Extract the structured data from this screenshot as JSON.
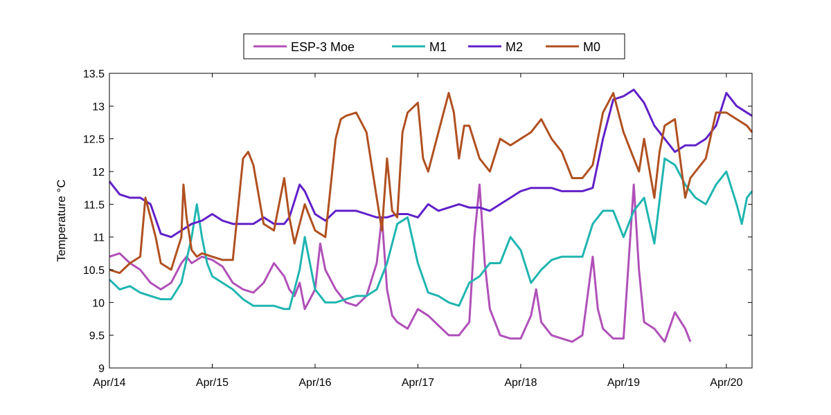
{
  "chart_data": {
    "type": "line",
    "ylabel": "Temperature °C",
    "xlabel": "",
    "title": "",
    "ylim": [
      9,
      13.5
    ],
    "xlim": [
      0,
      6.25
    ],
    "yticks": [
      9,
      9.5,
      10,
      10.5,
      11,
      11.5,
      12,
      12.5,
      13,
      13.5
    ],
    "ytick_labels": [
      "9",
      "9.5",
      "10",
      "10.5",
      "11",
      "11.5",
      "12",
      "12.5",
      "13",
      "13.5"
    ],
    "xticks": [
      0,
      1,
      2,
      3,
      4,
      5,
      6
    ],
    "xtick_labels": [
      "Apr/14",
      "Apr/15",
      "Apr/16",
      "Apr/17",
      "Apr/18",
      "Apr/19",
      "Apr/20"
    ],
    "grid": false,
    "legend_position": "top-center",
    "series": [
      {
        "name": "ESP-3 Moe",
        "color": "#b050b8",
        "x": [
          0,
          0.1,
          0.2,
          0.3,
          0.4,
          0.5,
          0.6,
          0.7,
          0.75,
          0.8,
          0.9,
          1.0,
          1.1,
          1.2,
          1.3,
          1.4,
          1.5,
          1.6,
          1.7,
          1.75,
          1.8,
          1.85,
          1.9,
          2.0,
          2.05,
          2.1,
          2.2,
          2.3,
          2.4,
          2.5,
          2.6,
          2.65,
          2.7,
          2.75,
          2.8,
          2.9,
          3.0,
          3.1,
          3.2,
          3.3,
          3.4,
          3.5,
          3.55,
          3.6,
          3.65,
          3.7,
          3.75,
          3.8,
          3.9,
          4.0,
          4.1,
          4.15,
          4.2,
          4.3,
          4.4,
          4.5,
          4.6,
          4.7,
          4.75,
          4.8,
          4.9,
          5.0,
          5.1,
          5.15,
          5.2,
          5.3,
          5.4,
          5.5,
          5.6,
          5.65
        ],
        "y": [
          10.7,
          10.75,
          10.6,
          10.5,
          10.3,
          10.2,
          10.3,
          10.6,
          10.7,
          10.6,
          10.7,
          10.65,
          10.55,
          10.3,
          10.2,
          10.15,
          10.3,
          10.6,
          10.4,
          10.2,
          10.1,
          10.3,
          9.9,
          10.2,
          10.9,
          10.5,
          10.2,
          10.0,
          9.95,
          10.1,
          10.6,
          11.3,
          10.2,
          9.8,
          9.7,
          9.6,
          9.9,
          9.8,
          9.65,
          9.5,
          9.5,
          9.7,
          11.0,
          11.8,
          10.6,
          9.9,
          9.7,
          9.5,
          9.45,
          9.45,
          9.8,
          10.2,
          9.7,
          9.5,
          9.45,
          9.4,
          9.5,
          10.7,
          9.9,
          9.6,
          9.45,
          9.45,
          11.8,
          10.5,
          9.7,
          9.6,
          9.4,
          9.85,
          9.6,
          9.4
        ]
      },
      {
        "name": "M1",
        "color": "#1fb5b0",
        "x": [
          0,
          0.1,
          0.2,
          0.3,
          0.4,
          0.5,
          0.6,
          0.7,
          0.8,
          0.85,
          0.9,
          0.95,
          1.0,
          1.1,
          1.2,
          1.3,
          1.4,
          1.5,
          1.6,
          1.7,
          1.75,
          1.8,
          1.85,
          1.9,
          2.0,
          2.1,
          2.2,
          2.3,
          2.4,
          2.5,
          2.6,
          2.7,
          2.8,
          2.9,
          3.0,
          3.1,
          3.2,
          3.3,
          3.4,
          3.5,
          3.6,
          3.7,
          3.8,
          3.9,
          4.0,
          4.1,
          4.2,
          4.3,
          4.4,
          4.5,
          4.6,
          4.7,
          4.8,
          4.9,
          5.0,
          5.1,
          5.2,
          5.3,
          5.4,
          5.5,
          5.6,
          5.7,
          5.8,
          5.9,
          6.0,
          6.1,
          6.15,
          6.2,
          6.25
        ],
        "y": [
          10.35,
          10.2,
          10.25,
          10.15,
          10.1,
          10.05,
          10.05,
          10.3,
          11.0,
          11.5,
          11.0,
          10.6,
          10.4,
          10.3,
          10.2,
          10.05,
          9.95,
          9.95,
          9.95,
          9.9,
          9.9,
          10.2,
          10.5,
          11.0,
          10.2,
          10.0,
          10.0,
          10.05,
          10.1,
          10.1,
          10.2,
          10.6,
          11.2,
          11.3,
          10.6,
          10.15,
          10.1,
          10.0,
          9.95,
          10.3,
          10.4,
          10.6,
          10.6,
          11.0,
          10.8,
          10.3,
          10.5,
          10.65,
          10.7,
          10.7,
          10.7,
          11.2,
          11.4,
          11.4,
          11.0,
          11.4,
          11.6,
          10.9,
          12.2,
          12.1,
          11.8,
          11.6,
          11.5,
          11.8,
          12.0,
          11.5,
          11.2,
          11.6,
          11.7
        ]
      },
      {
        "name": "M2",
        "color": "#6020c8",
        "x": [
          0,
          0.1,
          0.2,
          0.3,
          0.4,
          0.5,
          0.6,
          0.7,
          0.8,
          0.9,
          1.0,
          1.1,
          1.2,
          1.3,
          1.4,
          1.5,
          1.6,
          1.7,
          1.75,
          1.8,
          1.85,
          1.9,
          2.0,
          2.1,
          2.2,
          2.3,
          2.4,
          2.5,
          2.6,
          2.7,
          2.8,
          2.9,
          3.0,
          3.1,
          3.2,
          3.3,
          3.4,
          3.5,
          3.6,
          3.7,
          3.8,
          3.9,
          4.0,
          4.1,
          4.2,
          4.3,
          4.4,
          4.5,
          4.6,
          4.7,
          4.8,
          4.9,
          5.0,
          5.1,
          5.2,
          5.3,
          5.4,
          5.5,
          5.6,
          5.7,
          5.8,
          5.9,
          6.0,
          6.1,
          6.2,
          6.25
        ],
        "y": [
          11.85,
          11.65,
          11.6,
          11.6,
          11.5,
          11.05,
          11.0,
          11.1,
          11.2,
          11.25,
          11.35,
          11.25,
          11.2,
          11.2,
          11.2,
          11.3,
          11.2,
          11.2,
          11.3,
          11.55,
          11.8,
          11.7,
          11.35,
          11.25,
          11.4,
          11.4,
          11.4,
          11.35,
          11.3,
          11.3,
          11.35,
          11.35,
          11.3,
          11.5,
          11.4,
          11.45,
          11.5,
          11.45,
          11.45,
          11.4,
          11.5,
          11.6,
          11.7,
          11.75,
          11.75,
          11.75,
          11.7,
          11.7,
          11.7,
          11.75,
          12.5,
          13.1,
          13.15,
          13.25,
          13.05,
          12.7,
          12.5,
          12.3,
          12.4,
          12.4,
          12.5,
          12.7,
          13.2,
          13.0,
          12.9,
          12.85
        ]
      },
      {
        "name": "M0",
        "color": "#b05020",
        "x": [
          0,
          0.1,
          0.2,
          0.3,
          0.35,
          0.4,
          0.45,
          0.5,
          0.6,
          0.7,
          0.72,
          0.75,
          0.8,
          0.85,
          0.9,
          1.0,
          1.1,
          1.2,
          1.3,
          1.35,
          1.4,
          1.5,
          1.6,
          1.7,
          1.75,
          1.8,
          1.85,
          1.9,
          2.0,
          2.1,
          2.2,
          2.25,
          2.3,
          2.4,
          2.5,
          2.6,
          2.65,
          2.7,
          2.75,
          2.8,
          2.85,
          2.9,
          3.0,
          3.05,
          3.1,
          3.2,
          3.3,
          3.35,
          3.4,
          3.45,
          3.5,
          3.6,
          3.7,
          3.8,
          3.9,
          4.0,
          4.1,
          4.2,
          4.3,
          4.4,
          4.5,
          4.6,
          4.7,
          4.8,
          4.9,
          5.0,
          5.1,
          5.15,
          5.2,
          5.3,
          5.35,
          5.4,
          5.5,
          5.6,
          5.65,
          5.7,
          5.8,
          5.9,
          6.0,
          6.1,
          6.2,
          6.25
        ],
        "y": [
          10.5,
          10.45,
          10.6,
          10.7,
          11.6,
          11.3,
          11.0,
          10.6,
          10.5,
          11.0,
          11.8,
          11.3,
          10.8,
          10.7,
          10.75,
          10.7,
          10.65,
          10.65,
          12.2,
          12.3,
          12.1,
          11.2,
          11.1,
          11.9,
          11.3,
          10.9,
          11.2,
          11.5,
          11.1,
          11.0,
          12.5,
          12.8,
          12.85,
          12.9,
          12.6,
          11.6,
          11.1,
          12.2,
          11.4,
          11.3,
          12.6,
          12.9,
          13.05,
          12.2,
          12.0,
          12.6,
          13.2,
          12.9,
          12.2,
          12.7,
          12.7,
          12.2,
          12.0,
          12.5,
          12.4,
          12.5,
          12.6,
          12.8,
          12.5,
          12.3,
          11.9,
          11.9,
          12.1,
          12.9,
          13.2,
          12.6,
          12.2,
          12.0,
          12.5,
          11.6,
          12.3,
          12.7,
          12.8,
          11.6,
          11.9,
          12.0,
          12.2,
          12.9,
          12.9,
          12.8,
          12.7,
          12.6
        ]
      }
    ]
  }
}
